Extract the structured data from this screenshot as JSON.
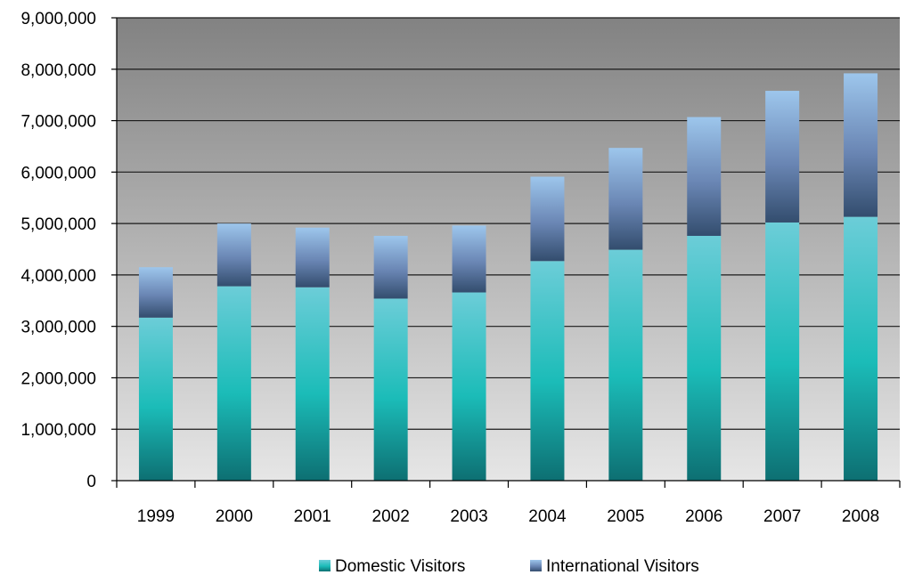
{
  "chart_data": {
    "type": "bar",
    "stacked": true,
    "categories": [
      "1999",
      "2000",
      "2001",
      "2002",
      "2003",
      "2004",
      "2005",
      "2006",
      "2007",
      "2008"
    ],
    "series": [
      {
        "name": "Domestic Visitors",
        "color": "#1FB3B3",
        "values": [
          3170000,
          3780000,
          3760000,
          3540000,
          3660000,
          4270000,
          4490000,
          4760000,
          5020000,
          5130000
        ]
      },
      {
        "name": "International Visitors",
        "color": "#6E8FC0",
        "values": [
          980000,
          1220000,
          1160000,
          1220000,
          1300000,
          1640000,
          1980000,
          2310000,
          2560000,
          2790000
        ]
      }
    ],
    "ylim": [
      0,
      9000000
    ],
    "ytick_step": 1000000,
    "ytick_labels": [
      "0",
      "1,000,000",
      "2,000,000",
      "3,000,000",
      "4,000,000",
      "5,000,000",
      "6,000,000",
      "7,000,000",
      "8,000,000",
      "9,000,000"
    ],
    "title": "",
    "xlabel": "",
    "ylabel": "",
    "grid": true,
    "legend_position": "bottom"
  }
}
